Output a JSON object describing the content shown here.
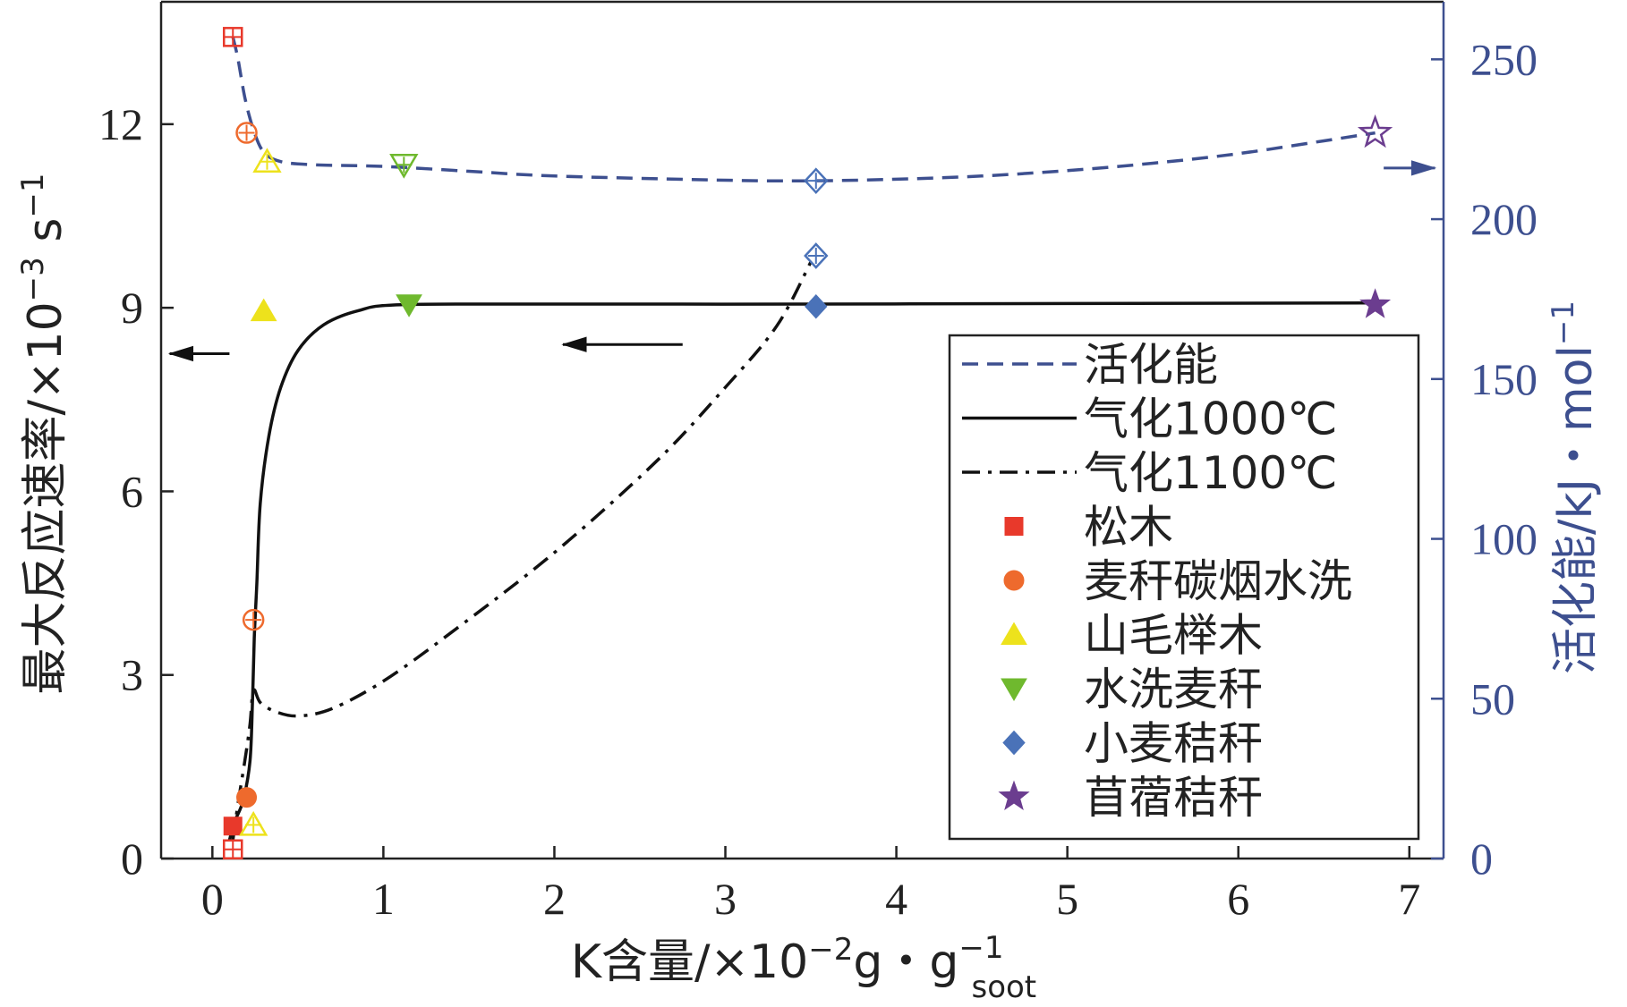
{
  "chart_data": {
    "type": "scatter",
    "x_axis": {
      "label_main": "K含量/×10",
      "label_exp": "−2",
      "label_mid": "g・g",
      "label_sup": "−1",
      "label_sub": "soot",
      "range": [
        -0.3,
        7.2
      ],
      "ticks": [
        0,
        1,
        2,
        3,
        4,
        5,
        6,
        7
      ],
      "tick_labels": [
        "0",
        "1",
        "2",
        "3",
        "4",
        "5",
        "6",
        "7"
      ]
    },
    "y_left": {
      "label_main": "最大反应速率/×10",
      "label_exp": "−3",
      "label_unit": " s",
      "label_unit_exp": "−1",
      "range": [
        0,
        14
      ],
      "ticks": [
        0,
        3,
        6,
        9,
        12
      ],
      "tick_labels": [
        "0",
        "3",
        "6",
        "9",
        "12"
      ]
    },
    "y_right": {
      "label_main": "活化能/kJ・mol",
      "label_exp": "−1",
      "range": [
        0,
        268
      ],
      "ticks": [
        0,
        50,
        100,
        150,
        200,
        250
      ],
      "tick_labels": [
        "0",
        "50",
        "100",
        "150",
        "200",
        "250"
      ],
      "color": "#3d4f8f"
    },
    "grid": false,
    "legend_position": "lower-right",
    "legend": [
      {
        "label": "活化能",
        "kind": "line",
        "dash": "dashed",
        "color": "#3d4f8f"
      },
      {
        "label": "气化1000℃",
        "kind": "line",
        "dash": "solid",
        "color": "#111111"
      },
      {
        "label": "气化1100℃",
        "kind": "line",
        "dash": "dashdot",
        "color": "#111111"
      },
      {
        "label": "松木",
        "kind": "marker",
        "shape": "square",
        "color": "#e8392b"
      },
      {
        "label": "麦秆碳烟水洗",
        "kind": "marker",
        "shape": "circle",
        "color": "#ee6a2d"
      },
      {
        "label": "山毛榉木",
        "kind": "marker",
        "shape": "triangle-up",
        "color": "#ede21c"
      },
      {
        "label": "水洗麦秆",
        "kind": "marker",
        "shape": "triangle-down",
        "color": "#6fb92e"
      },
      {
        "label": "小麦秸秆",
        "kind": "marker",
        "shape": "diamond",
        "color": "#4a72b8"
      },
      {
        "label": "苜蓿秸秆",
        "kind": "marker",
        "shape": "star",
        "color": "#6b3d8f"
      }
    ],
    "series": [
      {
        "name": "气化1000℃",
        "axis": "left",
        "points": [
          {
            "x": 0.12,
            "y": 0.53,
            "shape": "square",
            "color": "#e8392b"
          },
          {
            "x": 0.2,
            "y": 1.0,
            "shape": "circle",
            "color": "#ee6a2d"
          },
          {
            "x": 0.3,
            "y": 8.95,
            "shape": "triangle-up",
            "color": "#ede21c"
          },
          {
            "x": 1.15,
            "y": 9.05,
            "shape": "triangle-down",
            "color": "#6fb92e"
          },
          {
            "x": 3.53,
            "y": 9.02,
            "shape": "diamond",
            "color": "#4a72b8"
          },
          {
            "x": 6.8,
            "y": 9.05,
            "shape": "star",
            "color": "#6b3d8f"
          }
        ],
        "curve": [
          [
            0.1,
            0.3
          ],
          [
            0.13,
            0.6
          ],
          [
            0.18,
            0.95
          ],
          [
            0.22,
            1.6
          ],
          [
            0.235,
            2.6
          ],
          [
            0.245,
            3.6
          ],
          [
            0.26,
            4.5
          ],
          [
            0.28,
            5.8
          ],
          [
            0.33,
            6.9
          ],
          [
            0.4,
            7.7
          ],
          [
            0.5,
            8.3
          ],
          [
            0.65,
            8.72
          ],
          [
            0.85,
            8.95
          ],
          [
            1.1,
            9.05
          ],
          [
            2.0,
            9.06
          ],
          [
            3.5,
            9.06
          ],
          [
            5.0,
            9.07
          ],
          [
            6.8,
            9.08
          ]
        ]
      },
      {
        "name": "气化1100℃",
        "axis": "left",
        "points": [
          {
            "x": 0.12,
            "y": 0.15,
            "shape": "square",
            "color": "#e8392b"
          },
          {
            "x": 0.24,
            "y": 3.9,
            "shape": "circle",
            "color": "#ee6a2d"
          },
          {
            "x": 0.24,
            "y": 0.55,
            "shape": "triangle-up",
            "color": "#ede21c"
          },
          {
            "x": 3.53,
            "y": 9.85,
            "shape": "diamond",
            "color": "#4a72b8"
          }
        ],
        "curve": [
          [
            0.12,
            0.3
          ],
          [
            0.15,
            0.9
          ],
          [
            0.19,
            1.6
          ],
          [
            0.22,
            2.2
          ],
          [
            0.24,
            2.75
          ],
          [
            0.28,
            2.55
          ],
          [
            0.37,
            2.4
          ],
          [
            0.5,
            2.33
          ],
          [
            0.7,
            2.45
          ],
          [
            1.0,
            2.9
          ],
          [
            1.4,
            3.7
          ],
          [
            2.0,
            5.0
          ],
          [
            2.6,
            6.5
          ],
          [
            3.0,
            7.7
          ],
          [
            3.3,
            8.7
          ],
          [
            3.5,
            9.75
          ]
        ]
      },
      {
        "name": "活化能",
        "axis": "right",
        "points": [
          {
            "x": 0.12,
            "y": 257,
            "shape": "square",
            "color": "#e8392b"
          },
          {
            "x": 0.2,
            "y": 227,
            "shape": "circle",
            "color": "#ee6a2d"
          },
          {
            "x": 0.32,
            "y": 218,
            "shape": "triangle-up",
            "color": "#ede21c"
          },
          {
            "x": 1.12,
            "y": 217,
            "shape": "triangle-down",
            "color": "#6fb92e"
          },
          {
            "x": 3.53,
            "y": 212,
            "shape": "diamond",
            "color": "#4a72b8"
          },
          {
            "x": 6.8,
            "y": 227,
            "shape": "star",
            "color": "#6b3d8f"
          }
        ],
        "curve": [
          [
            0.12,
            257
          ],
          [
            0.15,
            250
          ],
          [
            0.19,
            238
          ],
          [
            0.24,
            228
          ],
          [
            0.3,
            221
          ],
          [
            0.4,
            218
          ],
          [
            0.6,
            217
          ],
          [
            1.0,
            216.5
          ],
          [
            1.5,
            215
          ],
          [
            2.0,
            213.5
          ],
          [
            3.0,
            212.2
          ],
          [
            3.5,
            212
          ],
          [
            4.0,
            212.5
          ],
          [
            4.5,
            213.5
          ],
          [
            5.0,
            215.2
          ],
          [
            5.5,
            217.5
          ],
          [
            6.0,
            220.5
          ],
          [
            6.5,
            224.5
          ],
          [
            6.8,
            227
          ]
        ]
      }
    ],
    "annotations": [
      {
        "text": "←",
        "meaning": "左侧曲线对应左轴"
      },
      {
        "text": "→",
        "meaning": "活化能对应右轴"
      }
    ]
  }
}
